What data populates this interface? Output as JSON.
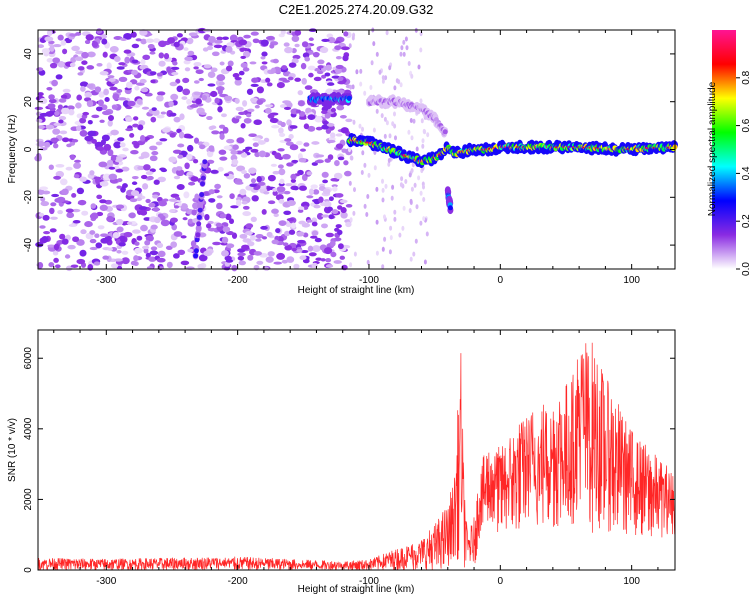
{
  "title": "C2E1.2025.274.20.09.G32",
  "chart_data": [
    {
      "type": "heatmap",
      "xlabel": "Height of straight line (km)",
      "ylabel": "Frequency (Hz)",
      "xlim": [
        -352,
        133
      ],
      "ylim": [
        -50,
        50
      ],
      "xticks": [
        -300,
        -200,
        -100,
        0,
        100
      ],
      "xtick_labels": [
        "-300",
        "-200",
        "-100",
        "0",
        "100"
      ],
      "yticks": [
        -40,
        -20,
        0,
        20,
        40
      ],
      "ytick_labels": [
        "-40",
        "-20",
        "0",
        "20",
        "40"
      ],
      "colorbar": {
        "label": "Normalized spectral amplitude",
        "range": [
          0,
          1
        ],
        "ticks": [
          0.0,
          0.2,
          0.4,
          0.6,
          0.8
        ],
        "tick_labels": [
          "0.0",
          "0.2",
          "0.4",
          "0.6",
          "0.8"
        ],
        "colormap": [
          "#ffffff",
          "#8a2be2",
          "#0000ff",
          "#00ffff",
          "#00ff00",
          "#ffff00",
          "#ff0000",
          "#ff1493"
        ]
      },
      "features": [
        {
          "name": "noise region",
          "x_range": [
            -352,
            -115
          ],
          "freq_range": [
            -50,
            50
          ],
          "amplitude": 0.15
        },
        {
          "name": "sporadic trace",
          "x": [
            -225,
            -232
          ],
          "freq": [
            -5,
            -45
          ],
          "amplitude": 0.25
        },
        {
          "name": "upper trace",
          "x": [
            -145,
            -115
          ],
          "freq": [
            21,
            21
          ],
          "amplitude": 0.45
        },
        {
          "name": "main trace",
          "x": [
            -115,
            -100,
            -85,
            -70,
            -60,
            -52,
            -45,
            -40,
            -35,
            -30,
            -20,
            -10,
            0,
            30,
            60,
            90,
            133
          ],
          "freq": [
            4,
            3,
            0,
            -3,
            -5,
            -4,
            -2,
            1,
            -2,
            -1,
            0,
            0,
            1,
            1,
            1,
            0,
            1
          ],
          "amplitude": 0.75
        },
        {
          "name": "side arc",
          "x": [
            -100,
            -80,
            -60,
            -50,
            -42
          ],
          "freq": [
            20,
            20,
            17,
            13,
            7
          ],
          "amplitude": 0.12
        },
        {
          "name": "lower blob",
          "x": [
            -40,
            -38
          ],
          "freq": [
            -18,
            -24
          ],
          "amplitude": 0.4
        }
      ]
    },
    {
      "type": "line",
      "xlabel": "Height of straight line (km)",
      "ylabel": "SNR (10 * v/v)",
      "xlim": [
        -352,
        133
      ],
      "ylim": [
        0,
        6800
      ],
      "xticks": [
        -300,
        -200,
        -100,
        0,
        100
      ],
      "xtick_labels": [
        "-300",
        "-200",
        "-100",
        "0",
        "100"
      ],
      "yticks": [
        0,
        2000,
        4000,
        6000
      ],
      "ytick_labels": [
        "0",
        "2000",
        "4000",
        "6000"
      ],
      "color": "#ff0000",
      "envelope": {
        "x": [
          -352,
          -300,
          -250,
          -200,
          -150,
          -120,
          -100,
          -80,
          -60,
          -50,
          -40,
          -35,
          -30,
          -28,
          -25,
          -20,
          -15,
          -10,
          0,
          20,
          40,
          55,
          60,
          70,
          80,
          100,
          120,
          133
        ],
        "min": [
          0,
          0,
          0,
          0,
          0,
          0,
          0,
          0,
          0,
          0,
          0,
          200,
          400,
          0,
          300,
          0,
          1100,
          1300,
          1000,
          1200,
          1200,
          1300,
          1400,
          1000,
          1100,
          1000,
          900,
          1000
        ],
        "max": [
          350,
          320,
          350,
          380,
          300,
          250,
          300,
          600,
          900,
          1300,
          1900,
          2700,
          6300,
          3000,
          1000,
          1500,
          3000,
          3500,
          3500,
          4500,
          5000,
          5500,
          6700,
          6500,
          5500,
          4000,
          3200,
          2800
        ]
      }
    }
  ]
}
